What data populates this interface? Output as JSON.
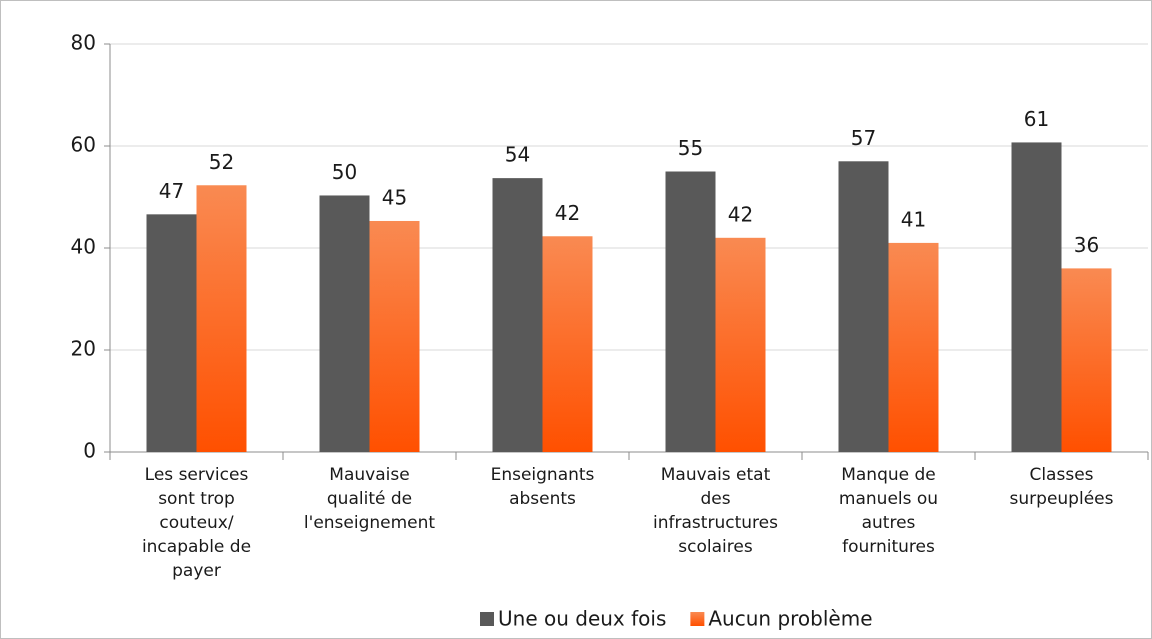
{
  "chart_data": {
    "type": "bar",
    "categories": [
      "Les services\nsont trop\ncouteux/\nincapable de\npayer",
      "Mauvaise\nqualité de\nl'enseignement",
      "Enseignants\nabsents",
      "Mauvais etat\ndes\ninfrastructures\nscolaires",
      "Manque  de\nmanuels ou\nautres\nfournitures",
      "Classes\nsurpeuplées"
    ],
    "series": [
      {
        "name": "Une ou deux fois",
        "color": "#595959",
        "values": [
          46.6,
          50.3,
          53.7,
          55.0,
          57.0,
          60.7
        ],
        "value_labels": [
          "47",
          "50",
          "54",
          "55",
          "57",
          "61"
        ]
      },
      {
        "name": "Aucun problème",
        "color": "#ff5a14",
        "values": [
          52.3,
          45.3,
          42.3,
          42.0,
          41.0,
          36.0
        ],
        "value_labels": [
          "52",
          "45",
          "42",
          "42",
          "41",
          "36"
        ]
      }
    ],
    "ylim": [
      0,
      80
    ],
    "yticks": [
      0,
      20,
      40,
      60,
      80
    ],
    "grid": true,
    "legend": "bottom"
  }
}
